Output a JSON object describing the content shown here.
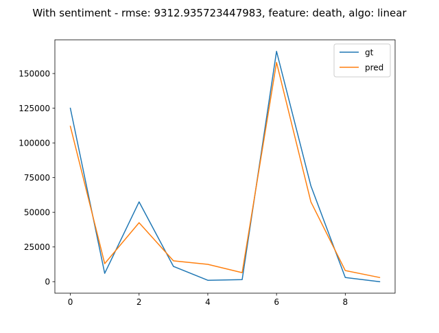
{
  "chart_data": {
    "type": "line",
    "title": "With sentiment - rmse: 9312.935723447983, feature: death, algo: linear",
    "xlabel": "",
    "ylabel": "",
    "x": [
      0,
      1,
      2,
      3,
      4,
      5,
      6,
      7,
      8,
      9
    ],
    "xlim": [
      -0.45,
      9.45
    ],
    "ylim": [
      -8300,
      174300
    ],
    "x_ticks": [
      0,
      2,
      4,
      6,
      8
    ],
    "x_tick_labels": [
      "0",
      "2",
      "4",
      "6",
      "8"
    ],
    "y_ticks": [
      0,
      25000,
      50000,
      75000,
      100000,
      125000,
      150000
    ],
    "y_tick_labels": [
      "0",
      "25000",
      "50000",
      "75000",
      "100000",
      "125000",
      "150000"
    ],
    "grid": false,
    "legend_position": "upper right",
    "series": [
      {
        "name": "gt",
        "color": "#1f77b4",
        "values": [
          125000,
          6000,
          57500,
          11000,
          1000,
          1500,
          166000,
          69000,
          3000,
          0
        ]
      },
      {
        "name": "pred",
        "color": "#ff7f0e",
        "values": [
          112000,
          13000,
          42500,
          15000,
          12500,
          6500,
          158000,
          57500,
          8000,
          3000
        ]
      }
    ]
  }
}
